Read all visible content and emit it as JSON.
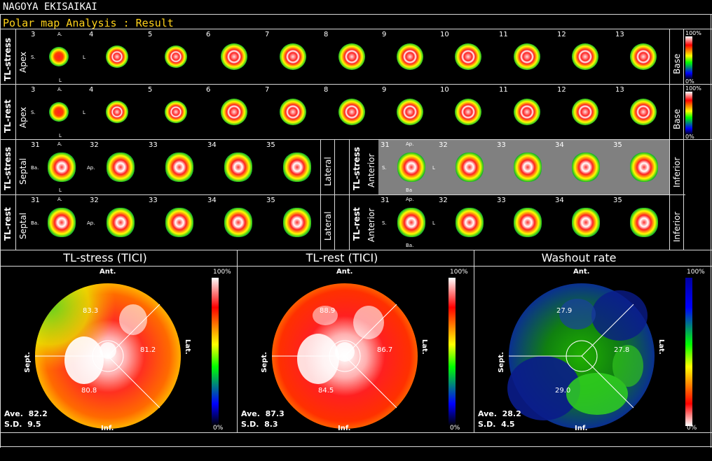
{
  "header": {
    "institution": "NAGOYA EKISAIKAI",
    "title": "Polar map Analysis : Result"
  },
  "rows": {
    "short_axis_stress": {
      "label": "TL-stress",
      "side_left": "Apex",
      "side_right": "Base",
      "slices": [
        "3",
        "4",
        "5",
        "6",
        "7",
        "8",
        "9",
        "10",
        "11",
        "12",
        "13"
      ],
      "markers": {
        "A": "A.",
        "S": "S.",
        "L": "L",
        "Lb": "L"
      }
    },
    "short_axis_rest": {
      "label": "TL-rest",
      "side_left": "Apex",
      "side_right": "Base",
      "slices": [
        "3",
        "4",
        "5",
        "6",
        "7",
        "8",
        "9",
        "10",
        "11",
        "12",
        "13"
      ],
      "markers": {
        "A": "A.",
        "S": "S.",
        "L": "L",
        "Lb": "L"
      }
    },
    "vla_stress": {
      "label": "TL-stress",
      "side_left": "Septal",
      "side_right": "Lateral",
      "slices": [
        "31",
        "32",
        "33",
        "34",
        "35"
      ],
      "markers": {
        "A": "A.",
        "Ba": "Ba.",
        "Ap": "Ap.",
        "L": "L"
      }
    },
    "vla_rest": {
      "label": "TL-rest",
      "side_left": "Septal",
      "side_right": "Lateral",
      "slices": [
        "31",
        "32",
        "33",
        "34",
        "35"
      ],
      "markers": {
        "A": "A.",
        "Ba": "Ba.",
        "Ap": "Ap."
      }
    },
    "hla_stress": {
      "label": "TL-stress",
      "side_left": "Anterior",
      "side_right": "Inferior",
      "slices": [
        "31",
        "32",
        "33",
        "34",
        "35"
      ],
      "markers": {
        "Ap": "Ap.",
        "S": "S.",
        "L": "L",
        "Ba": "Ba"
      }
    },
    "hla_rest": {
      "label": "TL-rest",
      "side_left": "Anterior",
      "side_right": "Inferior",
      "slices": [
        "31",
        "32",
        "33",
        "34",
        "35"
      ],
      "markers": {
        "Ap": "Ap.",
        "S": "S.",
        "L": "L",
        "Ba": "Ba."
      }
    }
  },
  "colorbar_small": {
    "top": "100%",
    "bottom": "0%"
  },
  "polar_maps": [
    {
      "title": "TL-stress (TICI)",
      "ant": "Ant.",
      "inf": "Inf.",
      "sept": "Sept.",
      "lat": "Lat.",
      "values": {
        "ant": "83.3",
        "lat": "81.2",
        "inf": "80.8"
      },
      "ave_label": "Ave.",
      "ave": "82.2",
      "sd_label": "S.D.",
      "sd": "9.5",
      "cb_top": "100%",
      "cb_bottom": "0%"
    },
    {
      "title": "TL-rest (TICI)",
      "ant": "Ant.",
      "inf": "Inf.",
      "sept": "Sept.",
      "lat": "Lat.",
      "values": {
        "ant": "88.9",
        "lat": "86.7",
        "inf": "84.5"
      },
      "ave_label": "Ave.",
      "ave": "87.3",
      "sd_label": "S.D.",
      "sd": "8.3",
      "cb_top": "100%",
      "cb_bottom": "0%"
    },
    {
      "title": "Washout rate",
      "ant": "Ant.",
      "inf": "Inf.",
      "sept": "Sept.",
      "lat": "Lat.",
      "values": {
        "ant": "27.9",
        "lat": "27.8",
        "inf": "29.0"
      },
      "ave_label": "Ave.",
      "ave": "28.2",
      "sd_label": "S.D.",
      "sd": "4.5",
      "cb_top": "100%",
      "cb_bottom": "0%"
    }
  ],
  "colors": {
    "subtitle": "#ffd21a",
    "selected_panel": "#808080",
    "grid_line": "#d8d8d8"
  }
}
